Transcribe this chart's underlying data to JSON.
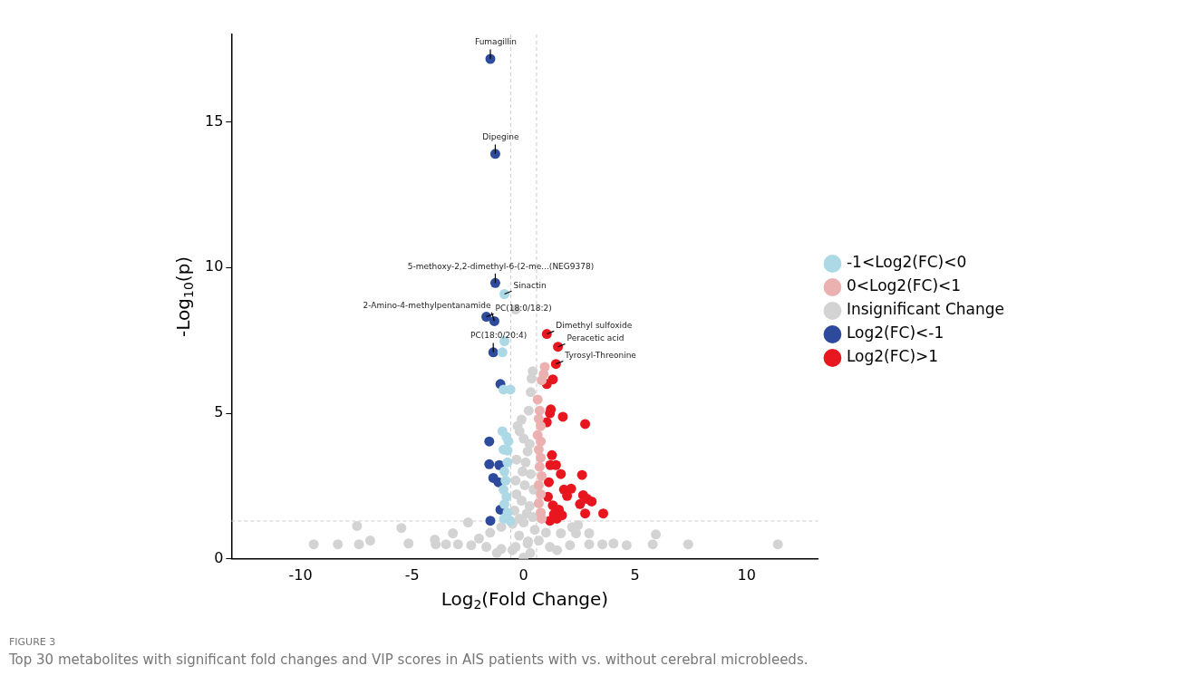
{
  "chart_data": {
    "type": "scatter",
    "xlabel": "Log$_{2}$(Fold Change)",
    "ylabel": "-Log$_{10}$(p)",
    "xlim": [
      -13.1,
      13.2
    ],
    "ylim": [
      0,
      18
    ],
    "xticks": [
      -10,
      -5,
      0,
      5,
      10
    ],
    "yticks": [
      0,
      5,
      10,
      15
    ],
    "grid": false,
    "legend": "right",
    "marker": "circle",
    "series": [
      {
        "name": "-1<Log2(FC)<0",
        "color": "#add8e6",
        "x": [
          -0.86,
          -0.86,
          -0.95,
          -0.9,
          -0.59,
          -0.95,
          -0.77,
          -0.68,
          -0.9,
          -0.72,
          -0.72,
          -0.86,
          -0.81,
          -0.9,
          -0.77,
          -0.86,
          -0.72,
          -0.88,
          -0.6
        ],
        "values": [
          9.09,
          7.47,
          7.09,
          5.81,
          5.81,
          4.38,
          4.19,
          4.03,
          3.75,
          3.72,
          3.31,
          3.0,
          2.69,
          2.38,
          2.13,
          1.88,
          1.59,
          1.38,
          1.31
        ]
      },
      {
        "name": "0<Log2(FC)<1",
        "color": "#ebb0b0",
        "x": [
          0.95,
          0.9,
          0.81,
          0.63,
          0.72,
          0.68,
          0.77,
          0.63,
          0.77,
          0.68,
          0.77,
          0.72,
          0.81,
          0.68,
          0.77,
          0.68,
          0.77,
          0.81
        ],
        "values": [
          6.59,
          6.34,
          6.13,
          5.47,
          5.09,
          4.81,
          4.56,
          4.25,
          4.03,
          3.75,
          3.47,
          3.16,
          2.84,
          2.53,
          2.22,
          1.91,
          1.59,
          1.38
        ]
      },
      {
        "name": "Insignificant Change",
        "color": "#d3d3d3",
        "x": [
          -0.36,
          0.41,
          0.36,
          0.32,
          0.23,
          -0.09,
          -0.27,
          -0.18,
          0,
          0.27,
          0.18,
          -0.32,
          0.09,
          -0.05,
          0.32,
          -0.36,
          0.05,
          0.45,
          -0.32,
          -0.09,
          0.27,
          -0.41,
          0.14,
          0.41,
          -0.18,
          -9.41,
          -8.33,
          -7.47,
          -7.38,
          -6.88,
          -5.48,
          -5.16,
          -3.98,
          -3.94,
          -3.48,
          -3.17,
          -2.49,
          -2.94,
          -2.35,
          -1.67,
          -1.0,
          -0.36,
          0.18,
          0.68,
          1.18,
          1.67,
          2.17,
          2.44,
          2.35,
          2.08,
          2.94,
          2.94,
          3.53,
          4.03,
          4.62,
          5.79,
          5.93,
          7.38,
          11.4,
          -2,
          -1.5,
          -1,
          -0.5,
          0,
          0.5,
          1,
          -0.5,
          0.3,
          0,
          -1.2,
          1.5,
          -0.2,
          0.2
        ],
        "values": [
          8.56,
          6.44,
          6.19,
          5.72,
          5.09,
          4.78,
          4.56,
          4.38,
          4.13,
          3.94,
          3.69,
          3.41,
          3.31,
          3.0,
          2.91,
          2.69,
          2.53,
          2.38,
          2.22,
          2.0,
          1.81,
          1.66,
          1.56,
          1.44,
          1.38,
          0.5,
          0.5,
          1.13,
          0.5,
          0.63,
          1.06,
          0.53,
          0.66,
          0.5,
          0.5,
          0.88,
          1.25,
          0.5,
          0.47,
          0.41,
          0.34,
          0.41,
          0.53,
          0.63,
          0.41,
          0.88,
          1.09,
          1.16,
          0.88,
          0.47,
          0.88,
          0.5,
          0.5,
          0.53,
          0.47,
          0.5,
          0.84,
          0.5,
          0.5,
          0.7,
          0.9,
          1.1,
          1.2,
          1.25,
          1.0,
          0.9,
          0.3,
          0.2,
          0.05,
          0.2,
          0.3,
          0.8,
          0.6
        ]
      },
      {
        "name": "Log2(FC)<-1",
        "color": "#2e4a9c",
        "x": [
          -1.49,
          -1.27,
          -1.27,
          -1.67,
          -1.31,
          -1.36,
          -1.04,
          -1.54,
          -1.54,
          -1.09,
          -1.36,
          -1.13,
          -1.04,
          -1.49
        ],
        "values": [
          17.16,
          13.9,
          9.47,
          8.31,
          8.16,
          7.09,
          6.0,
          4.03,
          3.25,
          3.22,
          2.78,
          2.63,
          1.69,
          1.31
        ]
      },
      {
        "name": "Log2(FC)>1",
        "color": "#e8161e",
        "x": [
          1.04,
          1.54,
          1.45,
          1.31,
          1.04,
          1.22,
          1.18,
          1.76,
          2.76,
          1.04,
          1.27,
          1.2,
          1.45,
          1.67,
          2.62,
          1.13,
          1.81,
          2.13,
          1.95,
          2.67,
          1.09,
          2.85,
          3.05,
          2.53,
          1.31,
          1.58,
          3.57,
          2.76,
          1.72,
          1.36,
          1.49,
          1.18
        ],
        "values": [
          7.72,
          7.28,
          6.69,
          6.16,
          6.0,
          5.13,
          5.0,
          4.88,
          4.63,
          4.69,
          3.56,
          3.22,
          3.22,
          2.91,
          2.88,
          2.63,
          2.38,
          2.41,
          2.16,
          2.19,
          2.13,
          2.06,
          1.97,
          1.88,
          1.84,
          1.69,
          1.56,
          1.56,
          1.5,
          1.53,
          1.38,
          1.31
        ]
      }
    ],
    "ref_lines": [
      {
        "axis": "x",
        "value": -0.58,
        "line_style": "dashed",
        "color": "#cccccc"
      },
      {
        "axis": "x",
        "value": 0.58,
        "line_style": "dashed",
        "color": "#cccccc"
      },
      {
        "axis": "y",
        "value": 1.3,
        "line_style": "dashed",
        "color": "#cccccc"
      }
    ],
    "annotations": [
      {
        "text": "Fumagillin",
        "x": -1.49,
        "y": 17.16
      },
      {
        "text": "Dipegine",
        "x": -1.27,
        "y": 13.9
      },
      {
        "text": "5-methoxy-2,2-dimethyl-6-(2-me...(NEG9378)",
        "x": -1.27,
        "y": 9.47
      },
      {
        "text": "Sinactin",
        "x": -0.86,
        "y": 9.09
      },
      {
        "text": "PC(18:0/18:2)",
        "x": -1.67,
        "y": 8.31
      },
      {
        "text": "2-Amino-4-methylpentanamide",
        "x": -1.31,
        "y": 8.16
      },
      {
        "text": "Dimethyl sulfoxide",
        "x": 1.04,
        "y": 7.72
      },
      {
        "text": "Peracetic acid",
        "x": 1.54,
        "y": 7.28
      },
      {
        "text": "Tyrosyl-Threonine",
        "x": 1.45,
        "y": 6.69
      },
      {
        "text": "PC(18:0/20:4)",
        "x": -1.36,
        "y": 7.09
      },
      "FIGURE 3",
      "Top 30 metabolites with significant fold changes and VIP scores in AIS patients with vs. without cerebral microbleeds."
    ]
  }
}
